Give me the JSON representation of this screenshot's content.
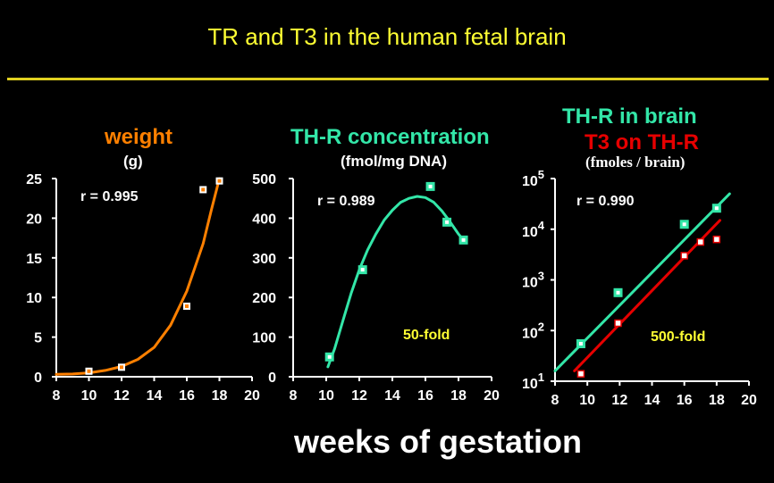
{
  "slide_title": "TR and T3 in the human fetal brain",
  "x_axis_label": "weeks of gestation",
  "colors": {
    "background": "#000000",
    "title": "#ffff33",
    "weight": "#ff8000",
    "thr": "#33e6a8",
    "t3": "#e60000",
    "annotation": "#ffff33",
    "axis": "#ffffff"
  },
  "chart_data": [
    {
      "type": "scatter",
      "title": "weight",
      "unit_label": "(g)",
      "x_ticks": [
        "8",
        "10",
        "12",
        "14",
        "16",
        "18",
        "20"
      ],
      "y_ticks": [
        "0",
        "5",
        "10",
        "15",
        "20",
        "25"
      ],
      "xlim": [
        8,
        20
      ],
      "ylim": [
        0,
        25
      ],
      "annotations": [
        "r = 0.995"
      ],
      "series": [
        {
          "points": [
            [
              10,
              0.7
            ],
            [
              12,
              1.2
            ],
            [
              16,
              8.9
            ],
            [
              17,
              23.6
            ],
            [
              18,
              24.7
            ]
          ],
          "fit": [
            [
              8,
              0.3
            ],
            [
              9,
              0.35
            ],
            [
              10,
              0.5
            ],
            [
              11,
              0.8
            ],
            [
              12,
              1.3
            ],
            [
              13,
              2.2
            ],
            [
              14,
              3.7
            ],
            [
              15,
              6.5
            ],
            [
              16,
              10.8
            ],
            [
              17,
              16.8
            ],
            [
              17.5,
              21.0
            ],
            [
              18,
              25.0
            ]
          ]
        }
      ]
    },
    {
      "type": "scatter",
      "title": "TH-R concentration",
      "unit_label": "(fmol/mg DNA)",
      "x_ticks": [
        "8",
        "10",
        "12",
        "14",
        "16",
        "18",
        "20"
      ],
      "y_ticks": [
        "0",
        "100",
        "200",
        "300",
        "400",
        "500"
      ],
      "xlim": [
        8,
        20
      ],
      "ylim": [
        0,
        500
      ],
      "annotations": [
        "r = 0.989",
        "50-fold"
      ],
      "series": [
        {
          "points": [
            [
              10.2,
              50
            ],
            [
              12.2,
              270
            ],
            [
              16.3,
              480
            ],
            [
              17.3,
              390
            ],
            [
              18.3,
              345
            ]
          ],
          "fit": [
            [
              10.1,
              25
            ],
            [
              10.5,
              70
            ],
            [
              11,
              140
            ],
            [
              11.5,
              210
            ],
            [
              12,
              270
            ],
            [
              12.5,
              320
            ],
            [
              13,
              360
            ],
            [
              13.5,
              395
            ],
            [
              14,
              420
            ],
            [
              14.5,
              440
            ],
            [
              15,
              450
            ],
            [
              15.5,
              455
            ],
            [
              16,
              452
            ],
            [
              16.5,
              440
            ],
            [
              17,
              418
            ],
            [
              17.5,
              390
            ],
            [
              18,
              360
            ],
            [
              18.4,
              340
            ]
          ]
        }
      ]
    },
    {
      "type": "line",
      "title": "TH-R  in brain",
      "title2": "T3 on TH-R",
      "unit_label": "(fmoles / brain)",
      "scale": "log",
      "x_ticks": [
        "8",
        "10",
        "12",
        "14",
        "16",
        "18",
        "20"
      ],
      "y_ticks": [
        {
          "base": "10",
          "exp": "1"
        },
        {
          "base": "10",
          "exp": "2"
        },
        {
          "base": "10",
          "exp": "3"
        },
        {
          "base": "10",
          "exp": "4"
        },
        {
          "base": "10",
          "exp": "5"
        }
      ],
      "xlim": [
        8,
        20
      ],
      "ylim": [
        10,
        100000
      ],
      "annotations": [
        "r = 0.990",
        "500-fold"
      ],
      "series": [
        {
          "key": "thr",
          "points": [
            [
              9.6,
              55
            ],
            [
              11.9,
              560
            ],
            [
              16,
              12500
            ],
            [
              18,
              26000
            ]
          ],
          "fit": [
            [
              8,
              16
            ],
            [
              18.8,
              50000
            ]
          ]
        },
        {
          "key": "t3",
          "points": [
            [
              9.6,
              14
            ],
            [
              11.9,
              140
            ],
            [
              16,
              3000
            ],
            [
              17,
              5600
            ],
            [
              18,
              6300
            ]
          ],
          "fit": [
            [
              9.2,
              16
            ],
            [
              18.2,
              15000
            ]
          ]
        }
      ]
    }
  ]
}
